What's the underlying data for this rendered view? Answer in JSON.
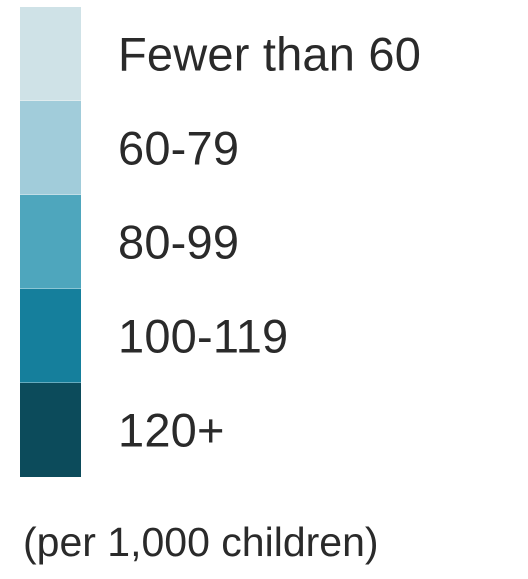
{
  "chart_data": {
    "type": "legend",
    "categories": [
      "Fewer than 60",
      "60-79",
      "80-99",
      "100-119",
      "120+"
    ],
    "colors": [
      "#cfe2e7",
      "#a1ccda",
      "#4ea6bd",
      "#157f9c",
      "#0c4b5b"
    ],
    "note": "(per 1,000 children)"
  }
}
